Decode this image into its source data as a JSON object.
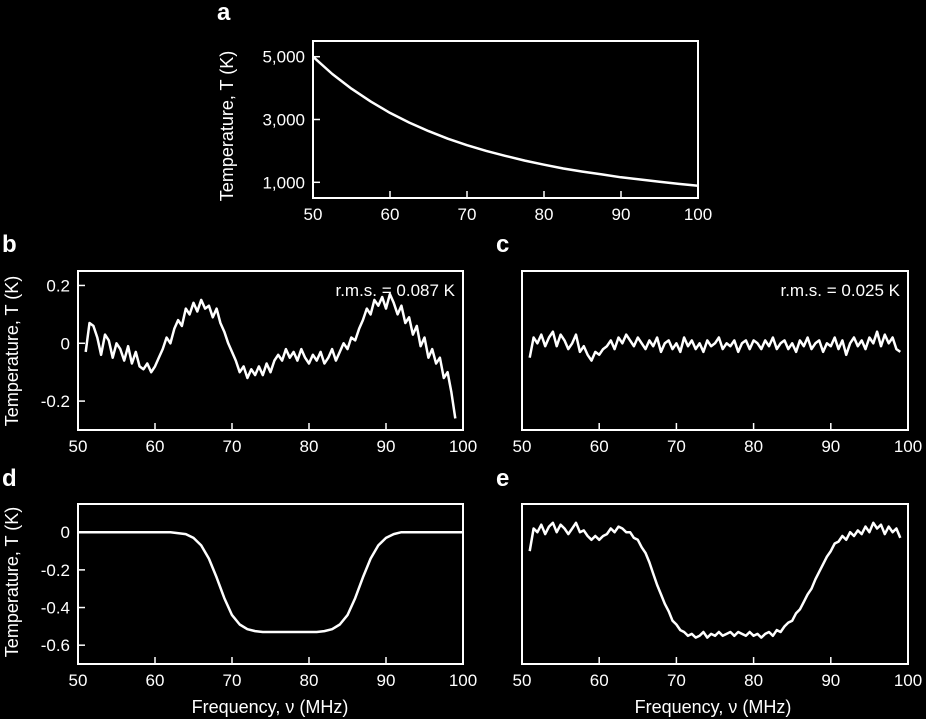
{
  "chart_data": [
    {
      "panel": "a",
      "type": "line",
      "xlabel": "",
      "ylabel": "Temperature, T (K)",
      "xlim": [
        50,
        100
      ],
      "ylim": [
        500,
        5500
      ],
      "xticks": [
        50,
        60,
        70,
        80,
        90,
        100
      ],
      "xtick_labels": [
        "50",
        "60",
        "70",
        "80",
        "90",
        "100"
      ],
      "yticks": [
        1000,
        3000,
        5000
      ],
      "ytick_labels": [
        "1,000",
        "3,000",
        "5,000"
      ],
      "annotation": "",
      "x": [
        50,
        52.5,
        55,
        57.5,
        60,
        62.5,
        65,
        67.5,
        70,
        72.5,
        75,
        77.5,
        80,
        82.5,
        85,
        87.5,
        90,
        92.5,
        95,
        97.5,
        100
      ],
      "y": [
        5000,
        4450,
        3980,
        3570,
        3210,
        2900,
        2630,
        2390,
        2180,
        2000,
        1840,
        1690,
        1560,
        1440,
        1340,
        1250,
        1160,
        1090,
        1020,
        950,
        890
      ]
    },
    {
      "panel": "b",
      "type": "line",
      "xlabel": "",
      "ylabel": "Temperature, T (K)",
      "xlim": [
        50,
        100
      ],
      "ylim": [
        -0.3,
        0.25
      ],
      "xticks": [
        50,
        60,
        70,
        80,
        90,
        100
      ],
      "xtick_labels": [
        "50",
        "60",
        "70",
        "80",
        "90",
        "100"
      ],
      "yticks": [
        -0.2,
        0,
        0.2
      ],
      "ytick_labels": [
        "-0.2",
        "0",
        "0.2"
      ],
      "annotation": "r.m.s. = 0.087 K",
      "x": [
        51,
        51.5,
        52,
        52.5,
        53,
        53.5,
        54,
        54.5,
        55,
        55.5,
        56,
        56.5,
        57,
        57.5,
        58,
        58.5,
        59,
        59.5,
        60,
        60.5,
        61,
        61.5,
        62,
        62.5,
        63,
        63.5,
        64,
        64.5,
        65,
        65.5,
        66,
        66.5,
        67,
        67.5,
        68,
        68.5,
        69,
        69.5,
        70,
        70.5,
        71,
        71.5,
        72,
        72.5,
        73,
        73.5,
        74,
        74.5,
        75,
        75.5,
        76,
        76.5,
        77,
        77.5,
        78,
        78.5,
        79,
        79.5,
        80,
        80.5,
        81,
        81.5,
        82,
        82.5,
        83,
        83.5,
        84,
        84.5,
        85,
        85.5,
        86,
        86.5,
        87,
        87.5,
        88,
        88.5,
        89,
        89.5,
        90,
        90.5,
        91,
        91.5,
        92,
        92.5,
        93,
        93.5,
        94,
        94.5,
        95,
        95.5,
        96,
        96.5,
        97,
        97.5,
        98,
        98.5,
        99
      ],
      "y": [
        -0.03,
        0.07,
        0.06,
        0.02,
        -0.04,
        0.03,
        0.01,
        -0.05,
        0.0,
        -0.02,
        -0.06,
        -0.01,
        -0.07,
        -0.03,
        -0.08,
        -0.09,
        -0.07,
        -0.1,
        -0.08,
        -0.05,
        -0.02,
        0.02,
        0.0,
        0.05,
        0.08,
        0.06,
        0.12,
        0.1,
        0.14,
        0.11,
        0.15,
        0.12,
        0.13,
        0.09,
        0.12,
        0.07,
        0.04,
        0.0,
        -0.03,
        -0.06,
        -0.1,
        -0.08,
        -0.12,
        -0.09,
        -0.11,
        -0.08,
        -0.11,
        -0.07,
        -0.1,
        -0.06,
        -0.04,
        -0.06,
        -0.02,
        -0.05,
        -0.03,
        -0.06,
        -0.02,
        -0.05,
        -0.07,
        -0.04,
        -0.06,
        -0.03,
        -0.07,
        -0.05,
        -0.02,
        -0.06,
        -0.03,
        0.0,
        -0.02,
        0.02,
        0.01,
        0.05,
        0.08,
        0.12,
        0.1,
        0.15,
        0.13,
        0.16,
        0.12,
        0.17,
        0.14,
        0.1,
        0.13,
        0.07,
        0.09,
        0.03,
        0.06,
        -0.01,
        0.02,
        -0.05,
        -0.02,
        -0.07,
        -0.05,
        -0.12,
        -0.1,
        -0.17,
        -0.26
      ]
    },
    {
      "panel": "c",
      "type": "line",
      "xlabel": "",
      "ylabel": "",
      "xlim": [
        50,
        100
      ],
      "ylim": [
        -0.3,
        0.25
      ],
      "xticks": [
        50,
        60,
        70,
        80,
        90,
        100
      ],
      "xtick_labels": [
        "50",
        "60",
        "70",
        "80",
        "90",
        "100"
      ],
      "yticks": [],
      "ytick_labels": [],
      "annotation": "r.m.s. = 0.025 K",
      "x": [
        51,
        51.5,
        52,
        52.5,
        53,
        53.5,
        54,
        54.5,
        55,
        55.5,
        56,
        56.5,
        57,
        57.5,
        58,
        58.5,
        59,
        59.5,
        60,
        60.5,
        61,
        61.5,
        62,
        62.5,
        63,
        63.5,
        64,
        64.5,
        65,
        65.5,
        66,
        66.5,
        67,
        67.5,
        68,
        68.5,
        69,
        69.5,
        70,
        70.5,
        71,
        71.5,
        72,
        72.5,
        73,
        73.5,
        74,
        74.5,
        75,
        75.5,
        76,
        76.5,
        77,
        77.5,
        78,
        78.5,
        79,
        79.5,
        80,
        80.5,
        81,
        81.5,
        82,
        82.5,
        83,
        83.5,
        84,
        84.5,
        85,
        85.5,
        86,
        86.5,
        87,
        87.5,
        88,
        88.5,
        89,
        89.5,
        90,
        90.5,
        91,
        91.5,
        92,
        92.5,
        93,
        93.5,
        94,
        94.5,
        95,
        95.5,
        96,
        96.5,
        97,
        97.5,
        98,
        98.5,
        99
      ],
      "y": [
        -0.05,
        0.02,
        0.0,
        0.03,
        -0.01,
        0.02,
        0.04,
        -0.01,
        0.03,
        0.01,
        -0.02,
        0.0,
        0.03,
        -0.03,
        -0.01,
        -0.04,
        -0.06,
        -0.03,
        -0.04,
        -0.02,
        -0.01,
        0.01,
        -0.02,
        0.02,
        0.0,
        0.03,
        0.01,
        -0.01,
        0.02,
        0.0,
        -0.02,
        0.01,
        -0.01,
        0.02,
        -0.03,
        0.0,
        0.01,
        -0.02,
        0.0,
        -0.03,
        0.02,
        -0.01,
        0.01,
        -0.02,
        0.0,
        -0.03,
        0.01,
        -0.01,
        0.0,
        0.02,
        -0.02,
        0.0,
        -0.01,
        0.01,
        -0.03,
        0.0,
        0.01,
        -0.02,
        0.01,
        0.0,
        -0.02,
        0.01,
        -0.01,
        0.02,
        -0.02,
        0.0,
        0.01,
        -0.02,
        0.0,
        -0.03,
        0.01,
        -0.01,
        0.02,
        -0.02,
        0.0,
        0.01,
        -0.03,
        0.0,
        -0.01,
        0.02,
        -0.02,
        0.01,
        -0.04,
        0.0,
        0.02,
        -0.01,
        0.01,
        -0.02,
        0.02,
        0.0,
        0.04,
        -0.01,
        0.03,
        0.0,
        0.02,
        -0.02,
        -0.03
      ]
    },
    {
      "panel": "d",
      "type": "line",
      "xlabel": "Frequency, ν (MHz)",
      "ylabel": "Temperature, T (K)",
      "xlim": [
        50,
        100
      ],
      "ylim": [
        -0.7,
        0.15
      ],
      "xticks": [
        50,
        60,
        70,
        80,
        90,
        100
      ],
      "xtick_labels": [
        "50",
        "60",
        "70",
        "80",
        "90",
        "100"
      ],
      "yticks": [
        -0.6,
        -0.4,
        -0.2,
        0
      ],
      "ytick_labels": [
        "-0.6",
        "-0.4",
        "-0.2",
        "0"
      ],
      "annotation": "",
      "x": [
        50,
        62,
        64,
        65,
        66,
        67,
        68,
        69,
        70,
        71,
        72,
        73,
        74,
        76,
        78,
        80,
        81,
        82,
        83,
        84,
        85,
        86,
        87,
        88,
        89,
        90,
        91,
        92,
        94,
        100
      ],
      "y": [
        0.0,
        0.0,
        -0.01,
        -0.03,
        -0.07,
        -0.14,
        -0.24,
        -0.35,
        -0.44,
        -0.49,
        -0.515,
        -0.525,
        -0.53,
        -0.53,
        -0.53,
        -0.53,
        -0.53,
        -0.525,
        -0.515,
        -0.49,
        -0.44,
        -0.35,
        -0.24,
        -0.14,
        -0.07,
        -0.03,
        -0.01,
        0.0,
        0.0,
        0.0
      ]
    },
    {
      "panel": "e",
      "type": "line",
      "xlabel": "Frequency, ν (MHz)",
      "ylabel": "",
      "xlim": [
        50,
        100
      ],
      "ylim": [
        -0.7,
        0.15
      ],
      "xticks": [
        50,
        60,
        70,
        80,
        90,
        100
      ],
      "xtick_labels": [
        "50",
        "60",
        "70",
        "80",
        "90",
        "100"
      ],
      "yticks": [],
      "ytick_labels": [],
      "annotation": "",
      "x": [
        51,
        51.5,
        52,
        52.5,
        53,
        53.5,
        54,
        54.5,
        55,
        55.5,
        56,
        56.5,
        57,
        57.5,
        58,
        58.5,
        59,
        59.5,
        60,
        60.5,
        61,
        61.5,
        62,
        62.5,
        63,
        63.5,
        64,
        64.5,
        65,
        65.5,
        66,
        66.5,
        67,
        67.5,
        68,
        68.5,
        69,
        69.5,
        70,
        70.5,
        71,
        71.5,
        72,
        72.5,
        73,
        73.5,
        74,
        74.5,
        75,
        75.5,
        76,
        76.5,
        77,
        77.5,
        78,
        78.5,
        79,
        79.5,
        80,
        80.5,
        81,
        81.5,
        82,
        82.5,
        83,
        83.5,
        84,
        84.5,
        85,
        85.5,
        86,
        86.5,
        87,
        87.5,
        88,
        88.5,
        89,
        89.5,
        90,
        90.5,
        91,
        91.5,
        92,
        92.5,
        93,
        93.5,
        94,
        94.5,
        95,
        95.5,
        96,
        96.5,
        97,
        97.5,
        98,
        98.5,
        99
      ],
      "y": [
        -0.1,
        0.02,
        0.0,
        0.04,
        -0.01,
        0.03,
        0.05,
        0.0,
        0.04,
        0.02,
        -0.01,
        0.02,
        0.05,
        0.0,
        0.01,
        -0.02,
        -0.04,
        -0.02,
        -0.04,
        -0.02,
        -0.01,
        0.02,
        0.0,
        0.03,
        0.02,
        0.0,
        0.0,
        -0.03,
        -0.04,
        -0.08,
        -0.11,
        -0.16,
        -0.22,
        -0.28,
        -0.33,
        -0.38,
        -0.42,
        -0.47,
        -0.49,
        -0.52,
        -0.53,
        -0.55,
        -0.54,
        -0.56,
        -0.55,
        -0.53,
        -0.56,
        -0.54,
        -0.55,
        -0.53,
        -0.55,
        -0.54,
        -0.53,
        -0.55,
        -0.53,
        -0.54,
        -0.55,
        -0.53,
        -0.55,
        -0.54,
        -0.56,
        -0.54,
        -0.53,
        -0.55,
        -0.52,
        -0.53,
        -0.5,
        -0.48,
        -0.47,
        -0.43,
        -0.41,
        -0.37,
        -0.33,
        -0.3,
        -0.25,
        -0.21,
        -0.17,
        -0.13,
        -0.1,
        -0.06,
        -0.05,
        -0.02,
        -0.04,
        0.0,
        -0.02,
        0.01,
        -0.01,
        0.03,
        0.0,
        0.05,
        0.02,
        0.04,
        -0.01,
        0.03,
        0.0,
        0.02,
        -0.03
      ]
    }
  ]
}
